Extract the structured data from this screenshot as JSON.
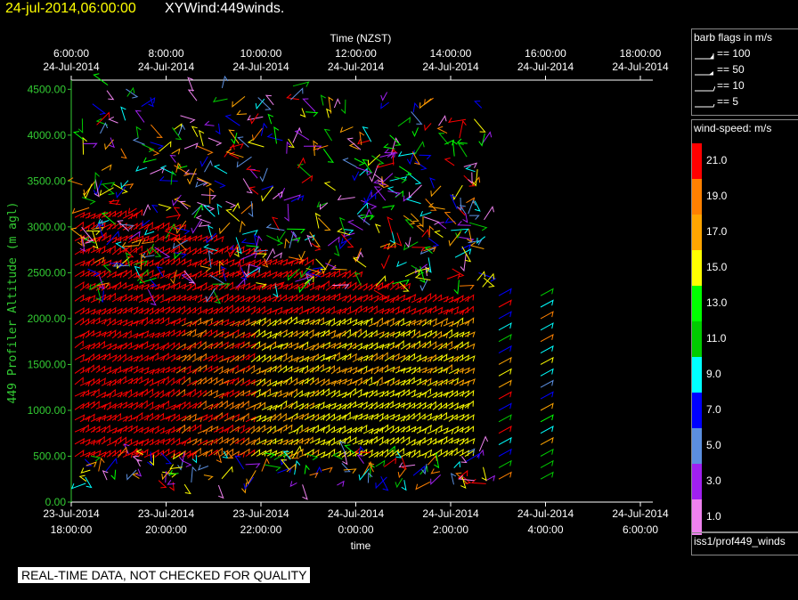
{
  "header": {
    "timestamp": "24-jul-2014,06:00:00",
    "title": "XYWind:449winds."
  },
  "chart_data": {
    "type": "wind-barb",
    "title": "XYWind:449winds.",
    "top_axis_label": "Time (NZST)",
    "bottom_axis_label": "time",
    "y_axis_label": "449 Profiler Altitude (m agl)",
    "ylim": [
      0,
      4600
    ],
    "y_ticks": [
      "0.00",
      "500.00",
      "1000.00",
      "1500.00",
      "2000.00",
      "2500.00",
      "3000.00",
      "3500.00",
      "4000.00",
      "4500.00"
    ],
    "top_ticks": [
      {
        "time": "6:00:00",
        "date": "24-Jul-2014"
      },
      {
        "time": "8:00:00",
        "date": "24-Jul-2014"
      },
      {
        "time": "10:00:00",
        "date": "24-Jul-2014"
      },
      {
        "time": "12:00:00",
        "date": "24-Jul-2014"
      },
      {
        "time": "14:00:00",
        "date": "24-Jul-2014"
      },
      {
        "time": "16:00:00",
        "date": "24-Jul-2014"
      },
      {
        "time": "18:00:00",
        "date": "24-Jul-2014"
      }
    ],
    "bottom_ticks": [
      {
        "date": "23-Jul-2014",
        "time": "18:00:00"
      },
      {
        "date": "23-Jul-2014",
        "time": "20:00:00"
      },
      {
        "date": "23-Jul-2014",
        "time": "22:00:00"
      },
      {
        "date": "24-Jul-2014",
        "time": "0:00:00"
      },
      {
        "date": "24-Jul-2014",
        "time": "2:00:00"
      },
      {
        "date": "24-Jul-2014",
        "time": "4:00:00"
      },
      {
        "date": "24-Jul-2014",
        "time": "6:00:00"
      }
    ]
  },
  "barb_legend": {
    "title": "barb flags in m/s",
    "items": [
      "== 100",
      "== 50",
      "== 10",
      "== 5"
    ]
  },
  "speed_legend": {
    "title": "wind-speed: m/s",
    "levels": [
      {
        "label": "21.0",
        "color": "#ff0000"
      },
      {
        "label": "19.0",
        "color": "#ff8000"
      },
      {
        "label": "17.0",
        "color": "#ffa500"
      },
      {
        "label": "15.0",
        "color": "#ffff00"
      },
      {
        "label": "13.0",
        "color": "#00ff00"
      },
      {
        "label": "11.0",
        "color": "#00cc00"
      },
      {
        "label": "9.0",
        "color": "#00ffff"
      },
      {
        "label": "7.0",
        "color": "#0000ff"
      },
      {
        "label": "5.0",
        "color": "#5b8fe0"
      },
      {
        "label": "3.0",
        "color": "#a020f0"
      },
      {
        "label": "1.0",
        "color": "#ee82ee"
      }
    ]
  },
  "source_label": "iss1/prof449_winds",
  "quality_notice": "REAL-TIME DATA, NOT CHECKED FOR QUALITY"
}
